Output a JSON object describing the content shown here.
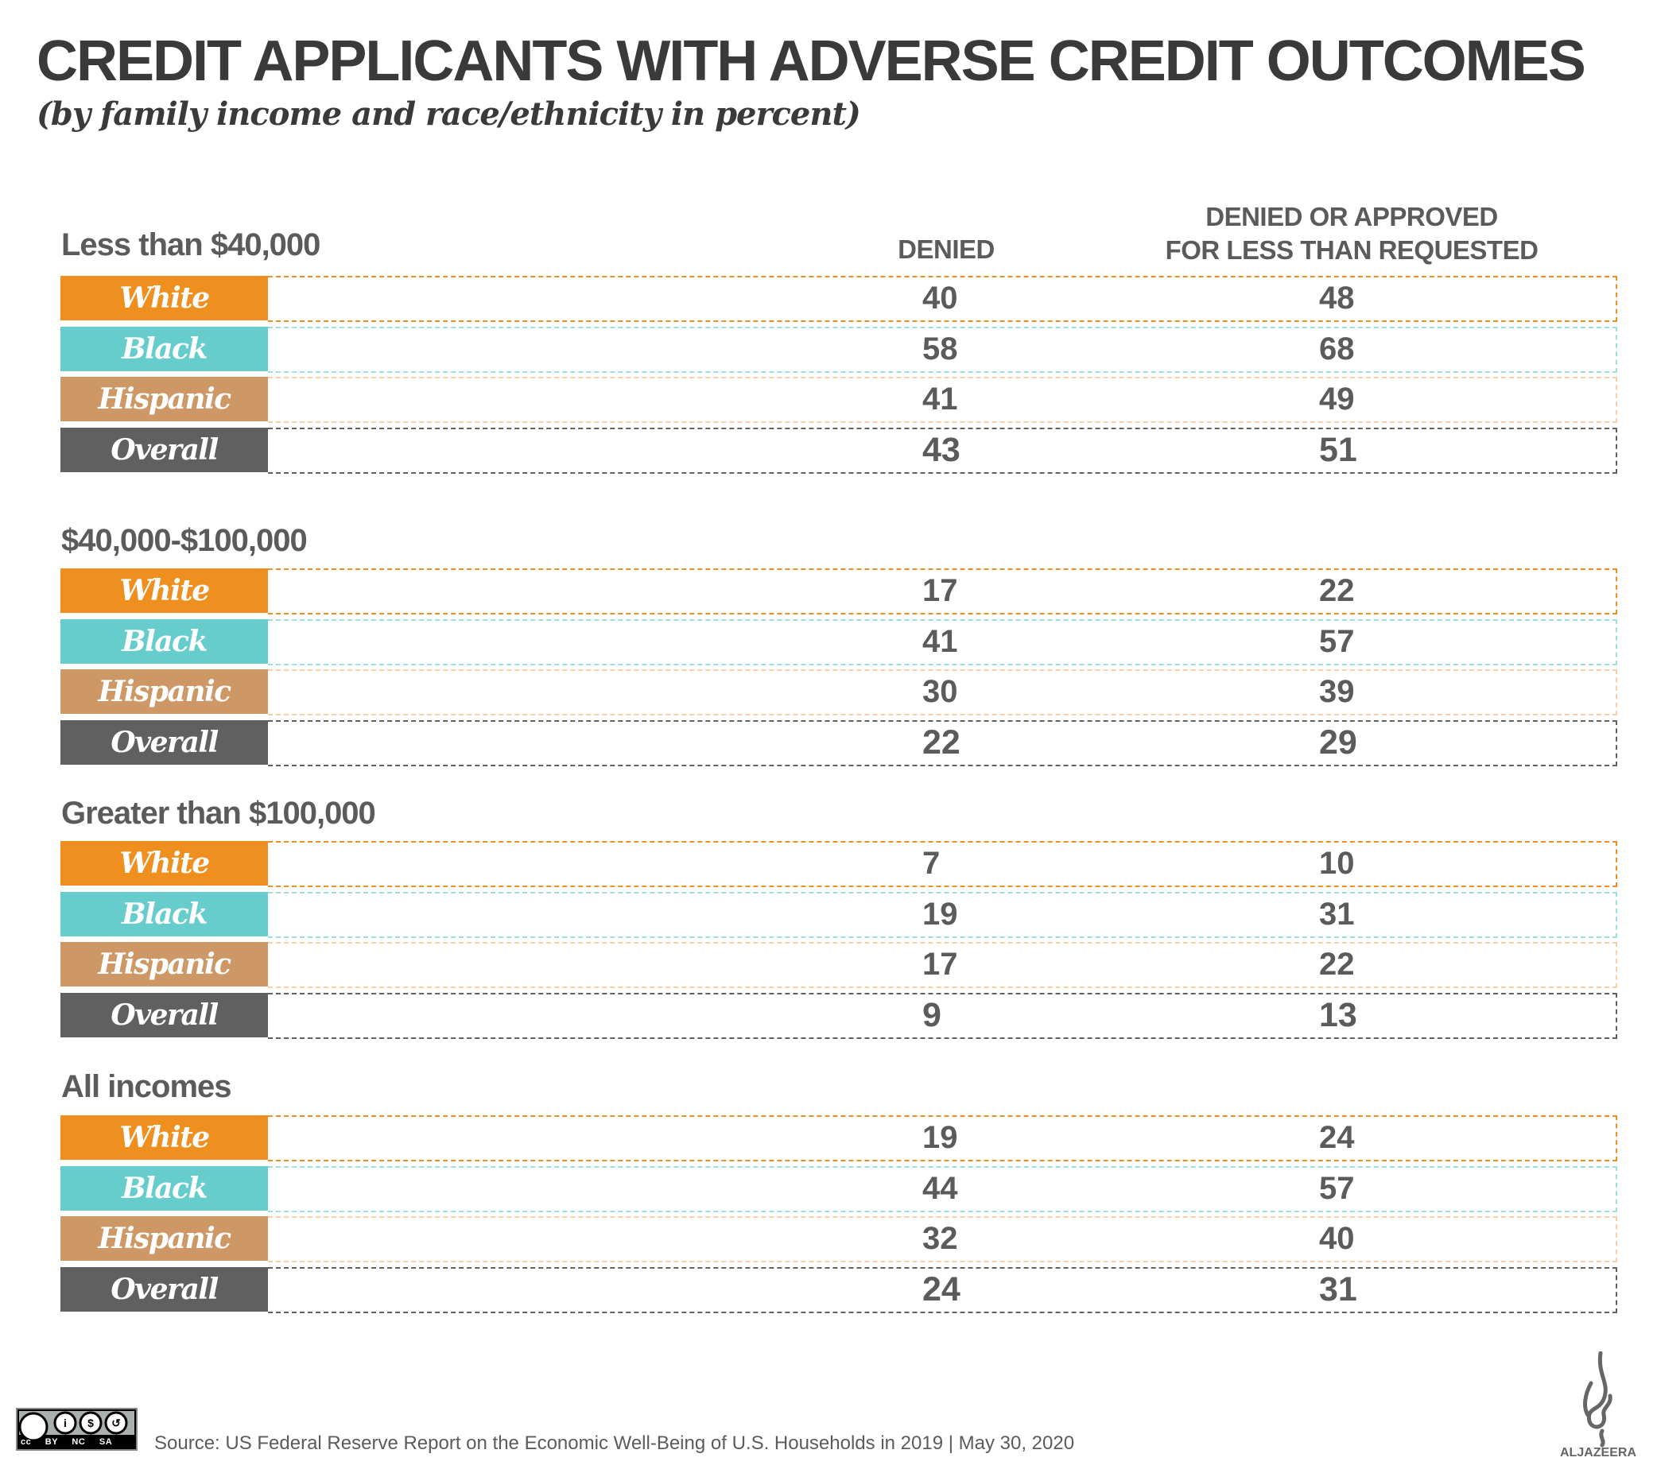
{
  "title": "CREDIT APPLICANTS WITH ADVERSE CREDIT OUTCOMES",
  "subtitle": "(by family income and race/ethnicity in percent)",
  "colors": {
    "White": "#EF8F20",
    "Black": "#66CDCC",
    "Hispanic": "#CD9866",
    "Overall": "#606060",
    "Hispanic_border": "#F9CFA5"
  },
  "chart_data": {
    "type": "table",
    "columns": [
      "DENIED",
      "DENIED OR APPROVED FOR LESS THAN REQUESTED"
    ],
    "column_header_lines": [
      "DENIED OR APPROVED",
      "FOR LESS THAN REQUESTED"
    ],
    "sections": [
      {
        "name": "Less than $40,000",
        "rows": [
          {
            "group": "White",
            "denied": "40",
            "denied_or_less": "48"
          },
          {
            "group": "Black",
            "denied": "58",
            "denied_or_less": "68"
          },
          {
            "group": "Hispanic",
            "denied": "41",
            "denied_or_less": "49"
          },
          {
            "group": "Overall",
            "denied": "43",
            "denied_or_less": "51"
          }
        ]
      },
      {
        "name": "$40,000-$100,000",
        "rows": [
          {
            "group": "White",
            "denied": "17",
            "denied_or_less": "22"
          },
          {
            "group": "Black",
            "denied": "41",
            "denied_or_less": "57"
          },
          {
            "group": "Hispanic",
            "denied": "30",
            "denied_or_less": "39"
          },
          {
            "group": "Overall",
            "denied": "22",
            "denied_or_less": "29"
          }
        ]
      },
      {
        "name": "Greater than $100,000",
        "rows": [
          {
            "group": "White",
            "denied": "7",
            "denied_or_less": "10"
          },
          {
            "group": "Black",
            "denied": "19",
            "denied_or_less": "31"
          },
          {
            "group": "Hispanic",
            "denied": "17",
            "denied_or_less": "22"
          },
          {
            "group": "Overall",
            "denied": "9",
            "denied_or_less": "13"
          }
        ]
      },
      {
        "name": "All incomes",
        "rows": [
          {
            "group": "White",
            "denied": "19",
            "denied_or_less": "24"
          },
          {
            "group": "Black",
            "denied": "44",
            "denied_or_less": "57"
          },
          {
            "group": "Hispanic",
            "denied": "32",
            "denied_or_less": "40"
          },
          {
            "group": "Overall",
            "denied": "24",
            "denied_or_less": "31"
          }
        ]
      }
    ]
  },
  "footer": {
    "source": "Source: US Federal Reserve Report on the Economic Well-Being of U.S. Households in 2019 |  May 30, 2020",
    "license_badge": "cc BY NC SA",
    "logo": "ALJAZEERA"
  }
}
